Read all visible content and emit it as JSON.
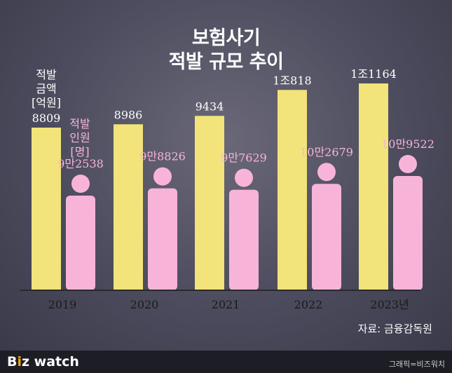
{
  "title_lines": [
    "보험사기",
    "적발 규모 추이"
  ],
  "source": "자료: 금융감독원",
  "footer": {
    "logo_b": "B",
    "logo_i": "i",
    "logo_z": "z",
    "logo_watch": " watch",
    "credit": "그래픽=비즈워치"
  },
  "colors": {
    "amount_bar": "#f2e37a",
    "people_bar": "#f8b4d8",
    "label_pink": "#f8b4d8",
    "label_white": "#ffffff",
    "axis_line": "#2a2a2a"
  },
  "chart_data": {
    "type": "bar",
    "categories": [
      "2019",
      "2020",
      "2021",
      "2022",
      "2023년"
    ],
    "series": [
      {
        "name": "적발 금액 [억원]",
        "values": [
          8809,
          8986,
          9434,
          10818,
          11164
        ],
        "data_labels": [
          "8809",
          "8986",
          "9434",
          "1조818",
          "1조1164"
        ]
      },
      {
        "name": "적발 인원 [명]",
        "values": [
          92538,
          98826,
          97629,
          102679,
          109522
        ],
        "data_labels": [
          "9만2538",
          "9만8826",
          "9만7629",
          "10만2679",
          "10만9522"
        ]
      }
    ],
    "legend_amount_lines": [
      "적발",
      "금액",
      "[억원]"
    ],
    "legend_people_lines": [
      "적발",
      "인원",
      "[명]"
    ]
  }
}
